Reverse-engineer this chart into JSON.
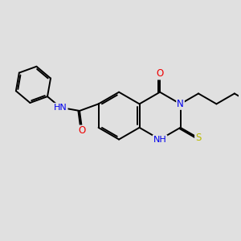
{
  "background_color": "#e0e0e0",
  "bond_color": "#000000",
  "bond_width": 1.4,
  "atom_colors": {
    "N": "#0000ee",
    "O": "#ee0000",
    "S": "#bbbb00",
    "H": "#555555"
  },
  "font_size": 8.5,
  "fig_width": 3.0,
  "fig_height": 3.0,
  "xlim": [
    0,
    10
  ],
  "ylim": [
    0,
    7
  ]
}
